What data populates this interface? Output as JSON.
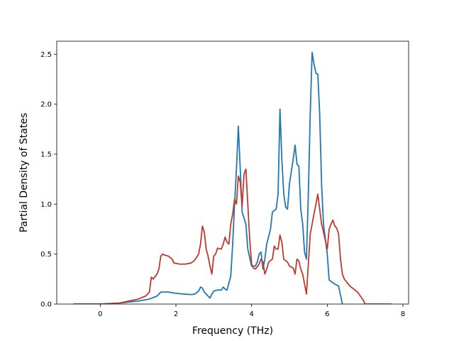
{
  "chart_data": {
    "type": "line",
    "xlabel": "Frequency (THz)",
    "ylabel": "Partial Density of States",
    "xlim": [
      -1.15,
      8.15
    ],
    "ylim": [
      0,
      2.63
    ],
    "xticks": [
      0,
      2,
      4,
      6,
      8
    ],
    "yticks": [
      0.0,
      0.5,
      1.0,
      1.5,
      2.0,
      2.5
    ],
    "xtick_labels": [
      "0",
      "2",
      "4",
      "6",
      "8"
    ],
    "ytick_labels": [
      "0.0",
      "0.5",
      "1.0",
      "1.5",
      "2.0",
      "2.5"
    ],
    "grid": false,
    "series": [
      {
        "color": "#1f77b4",
        "points": [
          [
            -0.7,
            0
          ],
          [
            0,
            0
          ],
          [
            0.5,
            0.01
          ],
          [
            1.0,
            0.03
          ],
          [
            1.3,
            0.05
          ],
          [
            1.5,
            0.08
          ],
          [
            1.6,
            0.12
          ],
          [
            1.8,
            0.12
          ],
          [
            1.95,
            0.11
          ],
          [
            2.2,
            0.1
          ],
          [
            2.4,
            0.095
          ],
          [
            2.5,
            0.1
          ],
          [
            2.6,
            0.13
          ],
          [
            2.65,
            0.17
          ],
          [
            2.7,
            0.16
          ],
          [
            2.75,
            0.12
          ],
          [
            2.85,
            0.08
          ],
          [
            2.9,
            0.06
          ],
          [
            2.95,
            0.1
          ],
          [
            3.0,
            0.13
          ],
          [
            3.1,
            0.14
          ],
          [
            3.2,
            0.14
          ],
          [
            3.25,
            0.17
          ],
          [
            3.3,
            0.15
          ],
          [
            3.35,
            0.14
          ],
          [
            3.45,
            0.28
          ],
          [
            3.5,
            0.6
          ],
          [
            3.55,
            1.0
          ],
          [
            3.6,
            1.35
          ],
          [
            3.65,
            1.78
          ],
          [
            3.7,
            1.35
          ],
          [
            3.75,
            0.92
          ],
          [
            3.85,
            0.8
          ],
          [
            3.9,
            0.55
          ],
          [
            4.0,
            0.38
          ],
          [
            4.1,
            0.38
          ],
          [
            4.15,
            0.42
          ],
          [
            4.2,
            0.5
          ],
          [
            4.25,
            0.52
          ],
          [
            4.3,
            0.35
          ],
          [
            4.35,
            0.45
          ],
          [
            4.4,
            0.6
          ],
          [
            4.5,
            0.75
          ],
          [
            4.55,
            0.92
          ],
          [
            4.65,
            0.95
          ],
          [
            4.7,
            1.1
          ],
          [
            4.75,
            1.95
          ],
          [
            4.8,
            1.45
          ],
          [
            4.85,
            1.1
          ],
          [
            4.9,
            0.97
          ],
          [
            4.95,
            0.95
          ],
          [
            5.0,
            1.2
          ],
          [
            5.1,
            1.45
          ],
          [
            5.15,
            1.59
          ],
          [
            5.2,
            1.4
          ],
          [
            5.25,
            1.38
          ],
          [
            5.3,
            0.95
          ],
          [
            5.35,
            0.8
          ],
          [
            5.4,
            0.52
          ],
          [
            5.45,
            0.45
          ],
          [
            5.5,
            1.1
          ],
          [
            5.55,
            1.9
          ],
          [
            5.6,
            2.52
          ],
          [
            5.65,
            2.4
          ],
          [
            5.7,
            2.31
          ],
          [
            5.75,
            2.3
          ],
          [
            5.8,
            1.9
          ],
          [
            5.85,
            1.2
          ],
          [
            5.9,
            0.8
          ],
          [
            6.0,
            0.5
          ],
          [
            6.05,
            0.24
          ],
          [
            6.2,
            0.2
          ],
          [
            6.3,
            0.18
          ],
          [
            6.4,
            0
          ]
        ]
      },
      {
        "color": "#c0392b",
        "points": [
          [
            -0.7,
            0
          ],
          [
            0,
            0
          ],
          [
            0.5,
            0.01
          ],
          [
            1.0,
            0.05
          ],
          [
            1.2,
            0.08
          ],
          [
            1.3,
            0.12
          ],
          [
            1.35,
            0.27
          ],
          [
            1.4,
            0.25
          ],
          [
            1.5,
            0.3
          ],
          [
            1.55,
            0.35
          ],
          [
            1.6,
            0.48
          ],
          [
            1.65,
            0.5
          ],
          [
            1.7,
            0.49
          ],
          [
            1.8,
            0.48
          ],
          [
            1.9,
            0.45
          ],
          [
            1.95,
            0.41
          ],
          [
            2.1,
            0.4
          ],
          [
            2.25,
            0.4
          ],
          [
            2.4,
            0.41
          ],
          [
            2.5,
            0.44
          ],
          [
            2.6,
            0.5
          ],
          [
            2.65,
            0.6
          ],
          [
            2.7,
            0.78
          ],
          [
            2.75,
            0.72
          ],
          [
            2.8,
            0.55
          ],
          [
            2.85,
            0.48
          ],
          [
            2.9,
            0.38
          ],
          [
            2.95,
            0.3
          ],
          [
            3.0,
            0.48
          ],
          [
            3.05,
            0.5
          ],
          [
            3.1,
            0.56
          ],
          [
            3.2,
            0.55
          ],
          [
            3.25,
            0.6
          ],
          [
            3.3,
            0.67
          ],
          [
            3.35,
            0.62
          ],
          [
            3.4,
            0.6
          ],
          [
            3.45,
            0.8
          ],
          [
            3.5,
            0.9
          ],
          [
            3.55,
            1.05
          ],
          [
            3.6,
            1.0
          ],
          [
            3.65,
            1.28
          ],
          [
            3.7,
            1.22
          ],
          [
            3.75,
            0.98
          ],
          [
            3.8,
            1.3
          ],
          [
            3.85,
            1.35
          ],
          [
            3.9,
            1.0
          ],
          [
            3.95,
            0.65
          ],
          [
            4.0,
            0.4
          ],
          [
            4.05,
            0.36
          ],
          [
            4.1,
            0.35
          ],
          [
            4.2,
            0.4
          ],
          [
            4.25,
            0.45
          ],
          [
            4.3,
            0.42
          ],
          [
            4.35,
            0.3
          ],
          [
            4.4,
            0.35
          ],
          [
            4.45,
            0.42
          ],
          [
            4.55,
            0.45
          ],
          [
            4.6,
            0.58
          ],
          [
            4.65,
            0.55
          ],
          [
            4.7,
            0.55
          ],
          [
            4.75,
            0.69
          ],
          [
            4.8,
            0.62
          ],
          [
            4.85,
            0.45
          ],
          [
            4.95,
            0.42
          ],
          [
            5.0,
            0.38
          ],
          [
            5.1,
            0.36
          ],
          [
            5.15,
            0.3
          ],
          [
            5.2,
            0.45
          ],
          [
            5.25,
            0.43
          ],
          [
            5.3,
            0.35
          ],
          [
            5.35,
            0.3
          ],
          [
            5.4,
            0.2
          ],
          [
            5.45,
            0.1
          ],
          [
            5.5,
            0.4
          ],
          [
            5.55,
            0.7
          ],
          [
            5.6,
            0.8
          ],
          [
            5.7,
            1.0
          ],
          [
            5.75,
            1.1
          ],
          [
            5.8,
            0.95
          ],
          [
            5.85,
            0.8
          ],
          [
            5.9,
            0.72
          ],
          [
            6.0,
            0.55
          ],
          [
            6.05,
            0.75
          ],
          [
            6.1,
            0.8
          ],
          [
            6.15,
            0.84
          ],
          [
            6.2,
            0.78
          ],
          [
            6.25,
            0.76
          ],
          [
            6.3,
            0.7
          ],
          [
            6.35,
            0.45
          ],
          [
            6.4,
            0.3
          ],
          [
            6.45,
            0.25
          ],
          [
            6.6,
            0.18
          ],
          [
            6.8,
            0.12
          ],
          [
            6.95,
            0.04
          ],
          [
            7.0,
            0.0
          ],
          [
            7.7,
            0.0
          ]
        ]
      }
    ]
  }
}
